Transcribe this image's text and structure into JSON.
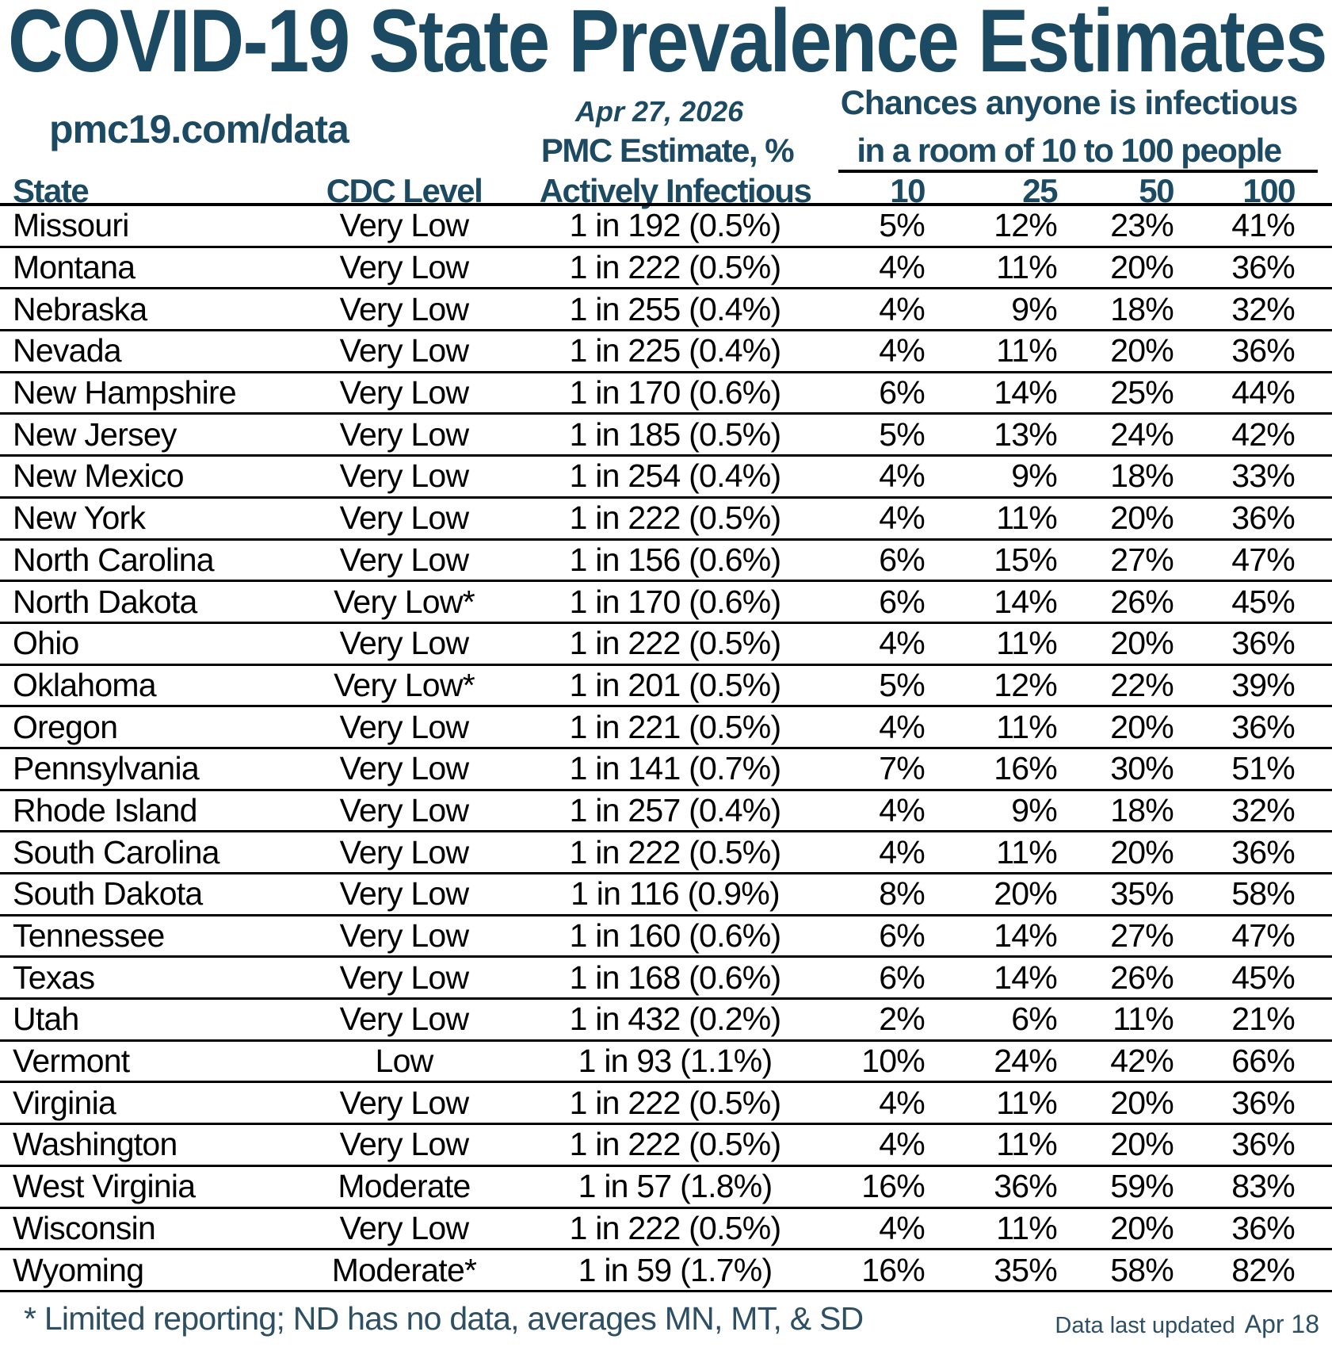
{
  "title": "COVID-19 State Prevalence Estimates",
  "subtitle": {
    "site": "pmc19.com/data",
    "date": "Apr 27, 2026"
  },
  "header": {
    "pmc_estimate_label": "PMC Estimate, %",
    "chances_line1": "Chances anyone is infectious",
    "chances_line2": "in a room of 10 to 100 people"
  },
  "footer": {
    "note": "* Limited reporting; ND has no data, averages MN, MT, & SD",
    "updated_label": "Data last updated",
    "updated_date": "Apr 18"
  },
  "colors": {
    "accent": "#1d4a63",
    "note_text": "#2d4f63",
    "body_text": "#000000",
    "rule": "#000000",
    "background": "#ffffff"
  },
  "chart_data": {
    "type": "table",
    "title": "COVID-19 State Prevalence Estimates",
    "columns": [
      "State",
      "CDC Level",
      "Actively Infectious",
      "10",
      "25",
      "50",
      "100"
    ],
    "column_group": "Chances anyone is infectious in a room of 10 to 100 people",
    "rows": [
      [
        "Missouri",
        "Very Low",
        "1 in 192 (0.5%)",
        "5%",
        "12%",
        "23%",
        "41%"
      ],
      [
        "Montana",
        "Very Low",
        "1 in 222 (0.5%)",
        "4%",
        "11%",
        "20%",
        "36%"
      ],
      [
        "Nebraska",
        "Very Low",
        "1 in 255 (0.4%)",
        "4%",
        "9%",
        "18%",
        "32%"
      ],
      [
        "Nevada",
        "Very Low",
        "1 in 225 (0.4%)",
        "4%",
        "11%",
        "20%",
        "36%"
      ],
      [
        "New Hampshire",
        "Very Low",
        "1 in 170 (0.6%)",
        "6%",
        "14%",
        "25%",
        "44%"
      ],
      [
        "New Jersey",
        "Very Low",
        "1 in 185 (0.5%)",
        "5%",
        "13%",
        "24%",
        "42%"
      ],
      [
        "New Mexico",
        "Very Low",
        "1 in 254 (0.4%)",
        "4%",
        "9%",
        "18%",
        "33%"
      ],
      [
        "New York",
        "Very Low",
        "1 in 222 (0.5%)",
        "4%",
        "11%",
        "20%",
        "36%"
      ],
      [
        "North Carolina",
        "Very Low",
        "1 in 156 (0.6%)",
        "6%",
        "15%",
        "27%",
        "47%"
      ],
      [
        "North Dakota",
        "Very Low*",
        "1 in 170 (0.6%)",
        "6%",
        "14%",
        "26%",
        "45%"
      ],
      [
        "Ohio",
        "Very Low",
        "1 in 222 (0.5%)",
        "4%",
        "11%",
        "20%",
        "36%"
      ],
      [
        "Oklahoma",
        "Very Low*",
        "1 in 201 (0.5%)",
        "5%",
        "12%",
        "22%",
        "39%"
      ],
      [
        "Oregon",
        "Very Low",
        "1 in 221 (0.5%)",
        "4%",
        "11%",
        "20%",
        "36%"
      ],
      [
        "Pennsylvania",
        "Very Low",
        "1 in 141 (0.7%)",
        "7%",
        "16%",
        "30%",
        "51%"
      ],
      [
        "Rhode Island",
        "Very Low",
        "1 in 257 (0.4%)",
        "4%",
        "9%",
        "18%",
        "32%"
      ],
      [
        "South Carolina",
        "Very Low",
        "1 in 222 (0.5%)",
        "4%",
        "11%",
        "20%",
        "36%"
      ],
      [
        "South Dakota",
        "Very Low",
        "1 in 116 (0.9%)",
        "8%",
        "20%",
        "35%",
        "58%"
      ],
      [
        "Tennessee",
        "Very Low",
        "1 in 160 (0.6%)",
        "6%",
        "14%",
        "27%",
        "47%"
      ],
      [
        "Texas",
        "Very Low",
        "1 in 168 (0.6%)",
        "6%",
        "14%",
        "26%",
        "45%"
      ],
      [
        "Utah",
        "Very Low",
        "1 in 432 (0.2%)",
        "2%",
        "6%",
        "11%",
        "21%"
      ],
      [
        "Vermont",
        "Low",
        "1 in 93 (1.1%)",
        "10%",
        "24%",
        "42%",
        "66%"
      ],
      [
        "Virginia",
        "Very Low",
        "1 in 222 (0.5%)",
        "4%",
        "11%",
        "20%",
        "36%"
      ],
      [
        "Washington",
        "Very Low",
        "1 in 222 (0.5%)",
        "4%",
        "11%",
        "20%",
        "36%"
      ],
      [
        "West Virginia",
        "Moderate",
        "1 in 57 (1.8%)",
        "16%",
        "36%",
        "59%",
        "83%"
      ],
      [
        "Wisconsin",
        "Very Low",
        "1 in 222 (0.5%)",
        "4%",
        "11%",
        "20%",
        "36%"
      ],
      [
        "Wyoming",
        "Moderate*",
        "1 in 59 (1.7%)",
        "16%",
        "35%",
        "58%",
        "82%"
      ]
    ]
  }
}
